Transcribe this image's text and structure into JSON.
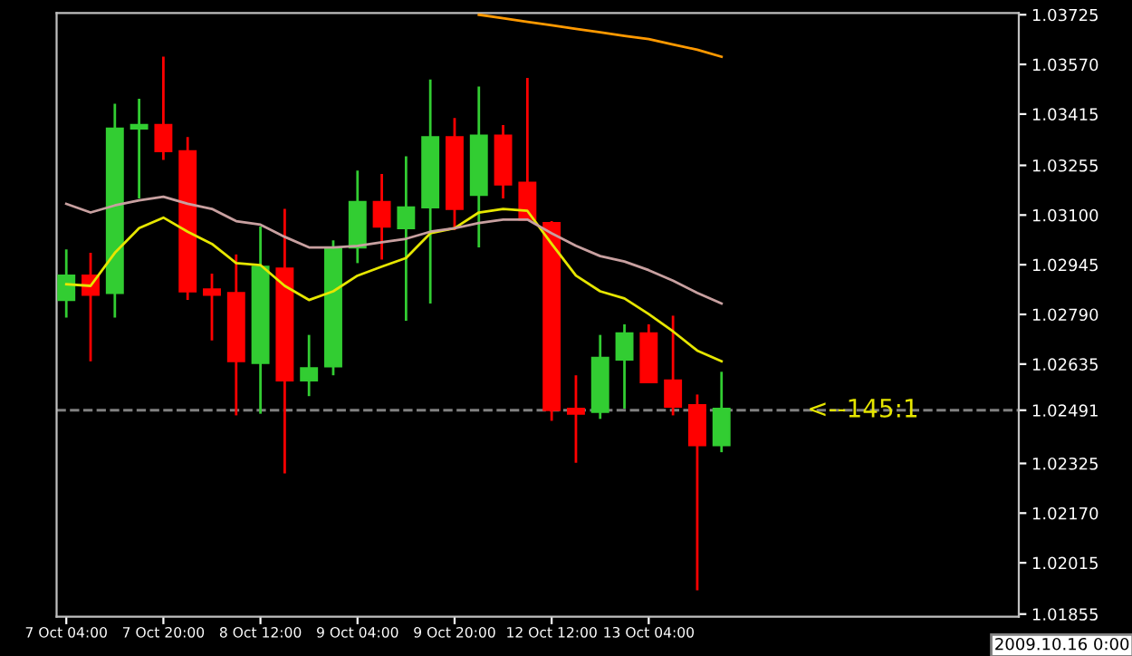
{
  "chart_data": {
    "type": "candlestick",
    "categories": [
      "7 Oct 04:00",
      null,
      null,
      null,
      "7 Oct 20:00",
      null,
      null,
      null,
      "8 Oct 12:00",
      null,
      null,
      null,
      "9 Oct 04:00",
      null,
      null,
      null,
      "9 Oct 20:00",
      null,
      null,
      null,
      "12 Oct 12:00",
      null,
      null,
      null,
      "13 Oct 04:00",
      null,
      null,
      null
    ],
    "ohlc": [
      [
        1.02835,
        1.02993,
        1.0278,
        1.02911
      ],
      [
        1.02911,
        1.02982,
        1.02644,
        1.02851
      ],
      [
        1.02857,
        1.03447,
        1.0278,
        1.0337
      ],
      [
        1.0337,
        1.03463,
        1.03152,
        1.03381
      ],
      [
        1.03381,
        1.03594,
        1.03272,
        1.03299
      ],
      [
        1.03299,
        1.03343,
        1.02835,
        1.02862
      ],
      [
        1.02868,
        1.02917,
        1.02709,
        1.02851
      ],
      [
        1.02857,
        1.02977,
        1.02475,
        1.02644
      ],
      [
        1.02638,
        1.03064,
        1.0248,
        1.02939
      ],
      [
        1.02933,
        1.03119,
        1.02294,
        1.02584
      ],
      [
        1.02584,
        1.02726,
        1.02535,
        1.02622
      ],
      [
        1.02628,
        1.03021,
        1.026,
        1.02999
      ],
      [
        1.02999,
        1.03239,
        1.0295,
        1.03141
      ],
      [
        1.03141,
        1.03228,
        1.02961,
        1.03064
      ],
      [
        1.03059,
        1.03283,
        1.0277,
        1.03124
      ],
      [
        1.03124,
        1.03523,
        1.02824,
        1.03343
      ],
      [
        1.03343,
        1.03403,
        1.03053,
        1.03119
      ],
      [
        1.03163,
        1.03501,
        1.02999,
        1.03348
      ],
      [
        1.03348,
        1.03381,
        1.03152,
        1.03195
      ],
      [
        1.03201,
        1.03528,
        1.03086,
        1.03086
      ],
      [
        1.03075,
        1.03081,
        1.02458,
        1.02491
      ],
      [
        1.02496,
        1.026,
        1.02327,
        1.0248
      ],
      [
        1.02486,
        1.02726,
        1.02464,
        1.02655
      ],
      [
        1.02649,
        1.02759,
        1.02496,
        1.02731
      ],
      [
        1.02731,
        1.02759,
        1.02578,
        1.02578
      ],
      [
        1.02584,
        1.02786,
        1.02475,
        1.02502
      ],
      [
        1.02507,
        1.0254,
        1.01929,
        1.02382
      ],
      [
        1.02382,
        1.02611,
        1.0236,
        1.02496
      ]
    ],
    "colors": [
      "#32cd32",
      "#ff0000",
      "#32cd32",
      "#32cd32",
      "#ff0000",
      "#ff0000",
      "#ff0000",
      "#ff0000",
      "#32cd32",
      "#ff0000",
      "#32cd32",
      "#32cd32",
      "#32cd32",
      "#ff0000",
      "#32cd32",
      "#32cd32",
      "#ff0000",
      "#32cd32",
      "#ff0000",
      "#ff0000",
      "#ff0000",
      "#ff0000",
      "#32cd32",
      "#32cd32",
      "#ff0000",
      "#ff0000",
      "#ff0000",
      "#32cd32"
    ],
    "series": [
      {
        "type": "line",
        "color": "#e6e600",
        "values": [
          1.02884,
          1.02879,
          1.02982,
          1.03059,
          1.03092,
          1.03048,
          1.0301,
          1.0295,
          1.02944,
          1.02879,
          1.02835,
          1.02862,
          1.02911,
          1.02939,
          1.02966,
          1.03043,
          1.03059,
          1.03108,
          1.03119,
          1.03113,
          1.0301,
          1.02911,
          1.02862,
          1.0284,
          1.02791,
          1.02737,
          1.02677,
          1.02644
        ]
      },
      {
        "type": "line",
        "color": "#c8a0a0",
        "values": [
          1.03135,
          1.03108,
          1.0313,
          1.03146,
          1.03157,
          1.03135,
          1.03119,
          1.03081,
          1.0307,
          1.03032,
          1.02999,
          1.02999,
          1.03004,
          1.03015,
          1.03026,
          1.03048,
          1.03059,
          1.03075,
          1.03086,
          1.03086,
          1.03043,
          1.03004,
          1.02972,
          1.02955,
          1.02928,
          1.02895,
          1.02857,
          1.02824
        ]
      },
      {
        "type": "line",
        "color": "#ff9900",
        "values": [
          null,
          null,
          null,
          null,
          null,
          null,
          null,
          null,
          null,
          null,
          null,
          null,
          null,
          null,
          null,
          null,
          null,
          1.03725,
          1.03714,
          1.03703,
          1.03692,
          1.03681,
          1.0367,
          1.03659,
          1.03649,
          1.03632,
          1.03616,
          1.03594
        ]
      }
    ],
    "ylim": [
      1.01847,
      1.0373
    ],
    "yticks": [
      1.03725,
      {
        "value": 1.0357,
        "label": "1.03570"
      },
      1.03415,
      1.03255,
      {
        "value": 1.031,
        "label": "1.03100"
      },
      1.02945,
      {
        "value": 1.0279,
        "label": "1.02790"
      },
      1.02635,
      1.02491,
      1.02325,
      {
        "value": 1.0217,
        "label": "1.02170"
      },
      1.02015,
      1.01855
    ],
    "ref_lines": [
      {
        "axis": "y",
        "value": 1.02491,
        "label": "<--145:1",
        "color": "#808080",
        "line_style": "dashed"
      }
    ],
    "annotations": [
      "2009.10.16 0:00"
    ],
    "grid": false,
    "legend": false
  }
}
